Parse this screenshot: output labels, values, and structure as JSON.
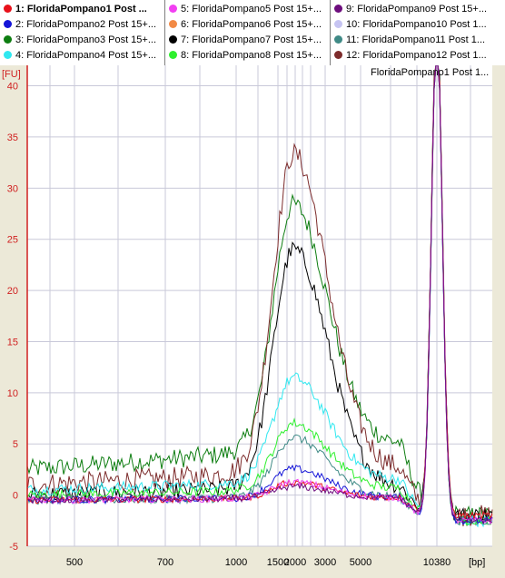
{
  "legend": [
    {
      "label": "1: FloridaPompano1 Post ...",
      "color": "#e8101a",
      "bold": true
    },
    {
      "label": "2: FloridaPompano2 Post 15+...",
      "color": "#1414d8"
    },
    {
      "label": "3: FloridaPompano3 Post 15+...",
      "color": "#0d7d10"
    },
    {
      "label": "4: FloridaPompano4 Post 15+...",
      "color": "#30e8f0"
    },
    {
      "label": "5: FloridaPompano5 Post 15+...",
      "color": "#f23ff2"
    },
    {
      "label": "6: FloridaPompano6 Post 15+...",
      "color": "#f28a46"
    },
    {
      "label": "7: FloridaPompano7 Post 15+...",
      "color": "#000000"
    },
    {
      "label": "8: FloridaPompano8 Post 15+...",
      "color": "#2ef02e"
    },
    {
      "label": "9: FloridaPompano9 Post 15+...",
      "color": "#6d0d7d"
    },
    {
      "label": "10: FloridaPompano10 Post 1...",
      "color": "#c6c4f2"
    },
    {
      "label": "11: FloridaPompano11 Post 1...",
      "color": "#3f8a86"
    },
    {
      "label": "12: FloridaPompano12 Post 1...",
      "color": "#7d2c2c"
    }
  ],
  "chart_data": {
    "type": "line",
    "title": "FloridaPompano1 Post 1...",
    "ylabel": "[FU]",
    "xlabel": "[bp]",
    "ylim": [
      -5,
      42
    ],
    "y_ticks": [
      -5,
      0,
      5,
      10,
      15,
      20,
      25,
      30,
      35,
      40
    ],
    "x_tick_labels": [
      "500",
      "700",
      "1000",
      "1500",
      "2000",
      "3000",
      "5000",
      "10380"
    ],
    "grid": true,
    "upper_marker_peak_bp": 10380,
    "series": [
      {
        "color": "#0d7d10",
        "peak_fu": 32,
        "baseline_fu": 2.5,
        "end_fu": -2
      },
      {
        "color": "#7d2c2c",
        "peak_fu": 38,
        "baseline_fu": 1,
        "end_fu": -2
      },
      {
        "color": "#000000",
        "peak_fu": 27.5,
        "baseline_fu": 0,
        "end_fu": -2
      },
      {
        "color": "#30e8f0",
        "peak_fu": 13,
        "baseline_fu": 0.5,
        "end_fu": -2.5
      },
      {
        "color": "#2ef02e",
        "peak_fu": 8,
        "baseline_fu": 0,
        "end_fu": -2.5
      },
      {
        "color": "#3f8a86",
        "peak_fu": 6.5,
        "baseline_fu": -0.5,
        "end_fu": -2.5
      },
      {
        "color": "#1414d8",
        "peak_fu": 3,
        "baseline_fu": -0.5,
        "end_fu": -2.5
      },
      {
        "color": "#e8101a",
        "peak_fu": 1.5,
        "baseline_fu": -0.5,
        "end_fu": -2
      },
      {
        "color": "#f23ff2",
        "peak_fu": 1.5,
        "baseline_fu": -0.5,
        "end_fu": -2.5
      },
      {
        "color": "#6d0d7d",
        "peak_fu": 1,
        "baseline_fu": -0.5,
        "end_fu": -2.5
      }
    ]
  }
}
